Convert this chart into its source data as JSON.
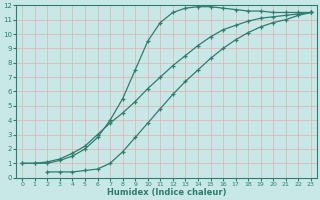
{
  "line1_x": [
    0,
    1,
    2,
    3,
    4,
    5,
    6,
    7,
    8,
    9,
    10,
    11,
    12,
    13,
    14,
    15,
    16,
    17,
    18,
    19,
    20,
    21,
    22,
    23
  ],
  "line1_y": [
    1.0,
    1.0,
    1.0,
    1.2,
    1.5,
    2.0,
    2.8,
    4.0,
    5.5,
    7.5,
    9.5,
    10.8,
    11.5,
    11.8,
    11.9,
    11.9,
    11.8,
    11.7,
    11.6,
    11.6,
    11.5,
    11.5,
    11.5,
    11.5
  ],
  "line2_x": [
    0,
    1,
    2,
    3,
    4,
    5,
    6,
    7,
    8,
    9,
    10,
    11,
    12,
    13,
    14,
    15,
    16,
    17,
    18,
    19,
    20,
    21,
    22,
    23
  ],
  "line2_y": [
    1.0,
    1.0,
    1.1,
    1.3,
    1.7,
    2.2,
    3.0,
    3.8,
    4.5,
    5.3,
    6.2,
    7.0,
    7.8,
    8.5,
    9.2,
    9.8,
    10.3,
    10.6,
    10.9,
    11.1,
    11.2,
    11.3,
    11.4,
    11.5
  ],
  "line3_x": [
    2,
    3,
    4,
    5,
    6,
    7,
    8,
    9,
    10,
    11,
    12,
    13,
    14,
    15,
    16,
    17,
    18,
    19,
    20,
    21,
    22,
    23
  ],
  "line3_y": [
    0.4,
    0.4,
    0.4,
    0.5,
    0.6,
    1.0,
    1.8,
    2.8,
    3.8,
    4.8,
    5.8,
    6.7,
    7.5,
    8.3,
    9.0,
    9.6,
    10.1,
    10.5,
    10.8,
    11.0,
    11.3,
    11.5
  ],
  "color": "#2e7d6e",
  "bg_color": "#c8e8e8",
  "grid_color": "#e0b8b8",
  "xlabel": "Humidex (Indice chaleur)",
  "xlim": [
    -0.5,
    23.5
  ],
  "ylim": [
    0,
    12
  ],
  "xticks": [
    0,
    1,
    2,
    3,
    4,
    5,
    6,
    7,
    8,
    9,
    10,
    11,
    12,
    13,
    14,
    15,
    16,
    17,
    18,
    19,
    20,
    21,
    22,
    23
  ],
  "yticks": [
    0,
    1,
    2,
    3,
    4,
    5,
    6,
    7,
    8,
    9,
    10,
    11,
    12
  ],
  "marker": "+"
}
